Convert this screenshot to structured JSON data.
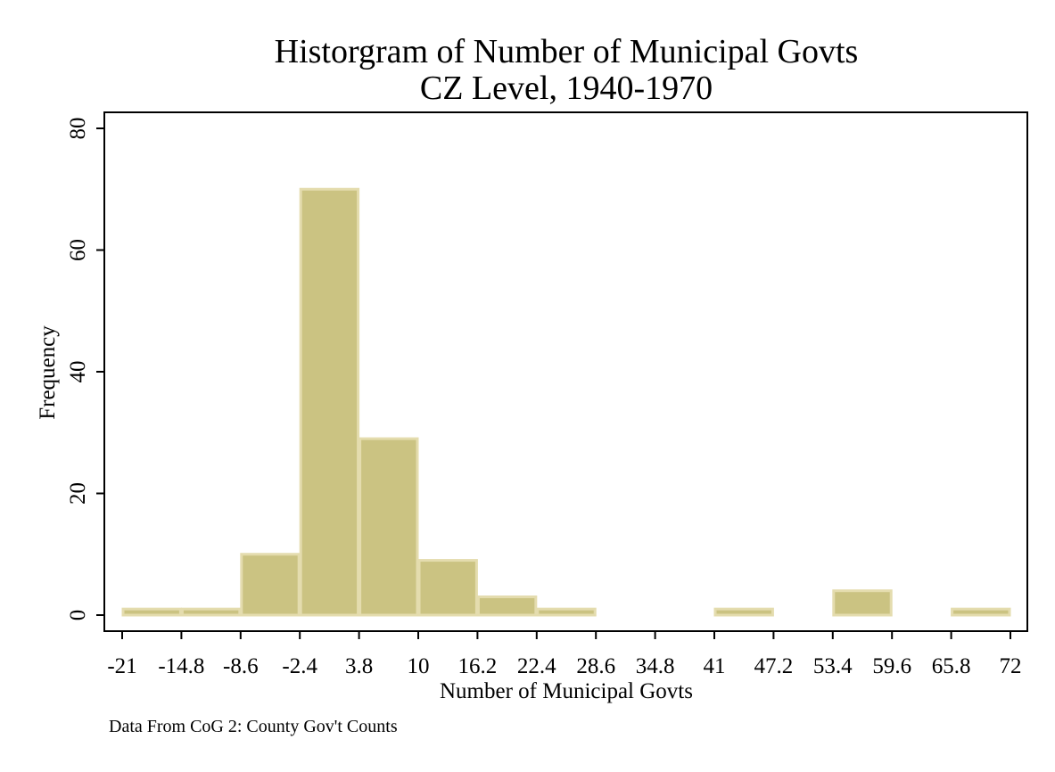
{
  "chart_data": {
    "type": "bar",
    "title": "Historgram of Number of Municipal Govts",
    "subtitle": "CZ Level, 1940-1970",
    "xlabel": "Number of Municipal Govts",
    "ylabel": "Frequency",
    "note": "Data From CoG 2: County Gov't Counts",
    "xlim": [
      -21,
      72
    ],
    "ylim": [
      0,
      80
    ],
    "x_tick_values": [
      -21,
      -14.8,
      -8.6,
      -2.4,
      3.8,
      10,
      16.2,
      22.4,
      28.6,
      34.8,
      41,
      47.2,
      53.4,
      59.6,
      65.8,
      72
    ],
    "x_tick_labels": [
      "-21",
      "-14.8",
      "-8.6",
      "-2.4",
      "3.8",
      "10",
      "16.2",
      "22.4",
      "28.6",
      "34.8",
      "41",
      "47.2",
      "53.4",
      "59.6",
      "65.8",
      "72"
    ],
    "y_tick_values": [
      0,
      20,
      40,
      60,
      80
    ],
    "y_tick_labels": [
      "0",
      "20",
      "40",
      "60",
      "80"
    ],
    "bins": [
      {
        "x0": -21,
        "x1": -14.8,
        "value": 1
      },
      {
        "x0": -14.8,
        "x1": -8.6,
        "value": 1
      },
      {
        "x0": -8.6,
        "x1": -2.4,
        "value": 10
      },
      {
        "x0": -2.4,
        "x1": 3.8,
        "value": 70
      },
      {
        "x0": 3.8,
        "x1": 10,
        "value": 29
      },
      {
        "x0": 10,
        "x1": 16.2,
        "value": 9
      },
      {
        "x0": 16.2,
        "x1": 22.4,
        "value": 3
      },
      {
        "x0": 22.4,
        "x1": 28.6,
        "value": 1
      },
      {
        "x0": 28.6,
        "x1": 34.8,
        "value": 0
      },
      {
        "x0": 34.8,
        "x1": 41,
        "value": 0
      },
      {
        "x0": 41,
        "x1": 47.2,
        "value": 1
      },
      {
        "x0": 47.2,
        "x1": 53.4,
        "value": 0
      },
      {
        "x0": 53.4,
        "x1": 59.6,
        "value": 4
      },
      {
        "x0": 59.6,
        "x1": 65.8,
        "value": 0
      },
      {
        "x0": 65.8,
        "x1": 72,
        "value": 1
      }
    ],
    "grid": false,
    "colors": {
      "bar_fill": "#cbc382",
      "bar_stroke": "#e4dcae"
    }
  }
}
